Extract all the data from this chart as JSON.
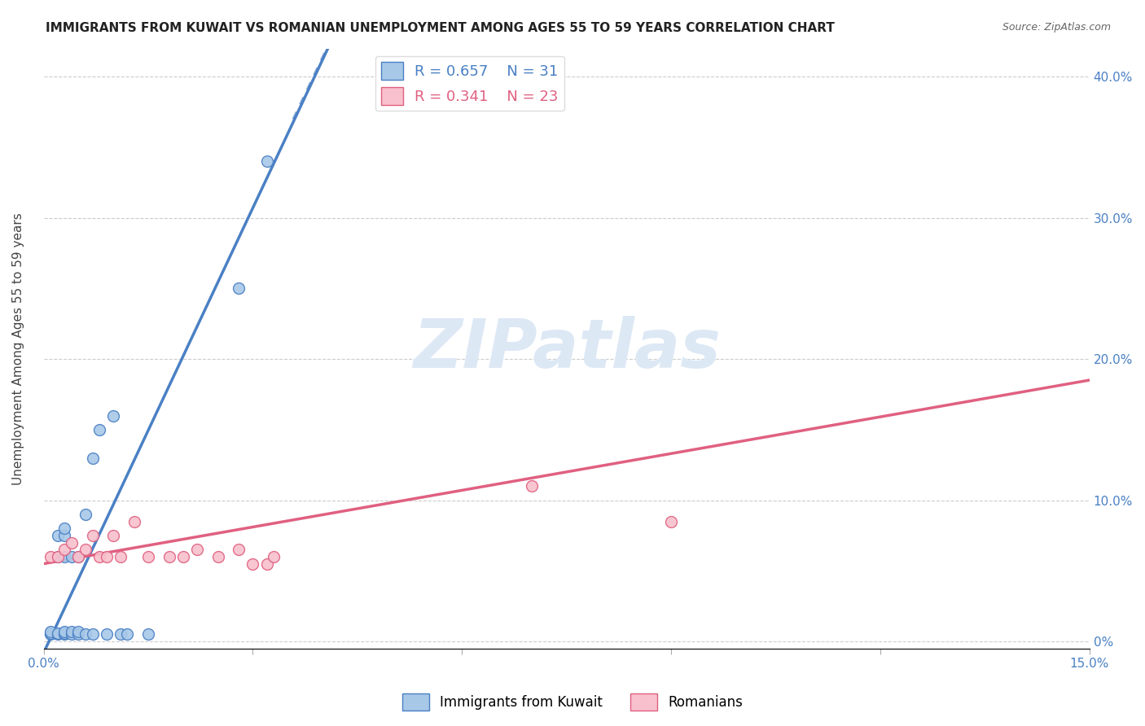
{
  "title": "IMMIGRANTS FROM KUWAIT VS ROMANIAN UNEMPLOYMENT AMONG AGES 55 TO 59 YEARS CORRELATION CHART",
  "source": "Source: ZipAtlas.com",
  "ylabel": "Unemployment Among Ages 55 to 59 years",
  "xlim": [
    0.0,
    0.15
  ],
  "ylim": [
    -0.005,
    0.42
  ],
  "xtick_positions": [
    0.0,
    0.03,
    0.06,
    0.09,
    0.12,
    0.15
  ],
  "xtick_labels": [
    "0.0%",
    "",
    "",
    "",
    "",
    "15.0%"
  ],
  "ytick_positions": [
    0.0,
    0.1,
    0.2,
    0.3,
    0.4
  ],
  "ytick_labels_right": [
    "0%",
    "10.0%",
    "20.0%",
    "30.0%",
    "40.0%"
  ],
  "blue_color": "#a8c8e8",
  "blue_edge_color": "#4a80c4",
  "blue_line_color": "#4a80c4",
  "pink_color": "#f8c0cc",
  "pink_edge_color": "#e06080",
  "pink_line_color": "#e06080",
  "watermark_text": "ZIPatlas",
  "watermark_color": "#dde8f5",
  "legend_r1": "0.657",
  "legend_n1": "31",
  "legend_r2": "0.341",
  "legend_n2": "23",
  "blue_points_x": [
    0.001,
    0.001,
    0.001,
    0.002,
    0.002,
    0.002,
    0.002,
    0.003,
    0.003,
    0.003,
    0.003,
    0.003,
    0.003,
    0.004,
    0.004,
    0.004,
    0.005,
    0.005,
    0.005,
    0.006,
    0.006,
    0.007,
    0.007,
    0.008,
    0.009,
    0.01,
    0.011,
    0.012,
    0.015,
    0.028,
    0.032
  ],
  "blue_points_y": [
    0.005,
    0.006,
    0.007,
    0.005,
    0.006,
    0.06,
    0.075,
    0.005,
    0.006,
    0.007,
    0.06,
    0.075,
    0.08,
    0.005,
    0.007,
    0.06,
    0.005,
    0.007,
    0.06,
    0.005,
    0.09,
    0.005,
    0.13,
    0.15,
    0.005,
    0.16,
    0.005,
    0.005,
    0.005,
    0.25,
    0.34
  ],
  "pink_points_x": [
    0.001,
    0.002,
    0.003,
    0.004,
    0.005,
    0.006,
    0.007,
    0.008,
    0.009,
    0.01,
    0.011,
    0.013,
    0.015,
    0.018,
    0.02,
    0.022,
    0.025,
    0.028,
    0.03,
    0.032,
    0.033,
    0.07,
    0.09
  ],
  "pink_points_y": [
    0.06,
    0.06,
    0.065,
    0.07,
    0.06,
    0.065,
    0.075,
    0.06,
    0.06,
    0.075,
    0.06,
    0.085,
    0.06,
    0.06,
    0.06,
    0.065,
    0.06,
    0.065,
    0.055,
    0.055,
    0.06,
    0.11,
    0.085
  ],
  "blue_reg_slope": 10.5,
  "blue_reg_intercept": -0.008,
  "pink_reg_slope": 0.867,
  "pink_reg_intercept": 0.055,
  "title_fontsize": 11,
  "source_fontsize": 9,
  "ylabel_fontsize": 11,
  "tick_fontsize": 11,
  "legend_fontsize": 13,
  "watermark_fontsize": 60,
  "marker_size": 100
}
